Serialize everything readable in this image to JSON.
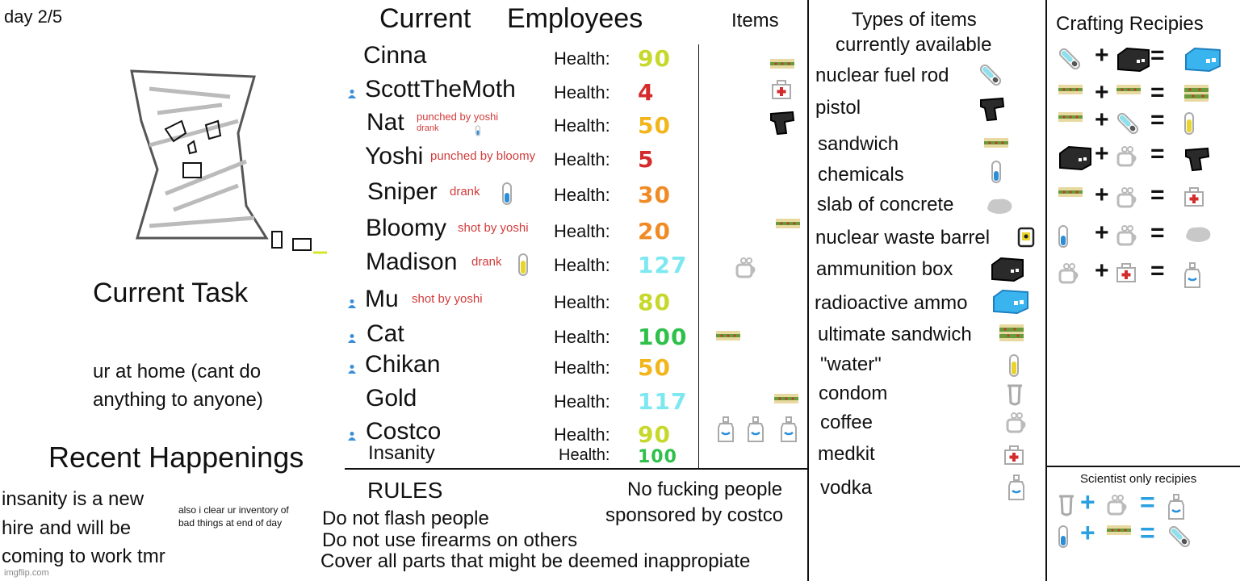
{
  "day": "day 2/5",
  "task": {
    "heading": "Current Task",
    "text_line1": "ur at home (cant do",
    "text_line2": "anything to anyone)"
  },
  "happenings": {
    "heading": "Recent Happenings",
    "line1": "insanity is a new",
    "line2": "hire and will be",
    "line3": "coming to work tmr",
    "side_line1": "also i clear ur inventory of",
    "side_line2": "bad things at end of day"
  },
  "employees": {
    "heading_a": "Current",
    "heading_b": "Employees",
    "items_heading": "Items",
    "health_label": "Health:",
    "rows": [
      {
        "name": "Cinna",
        "health": "90",
        "color": "#c6d82a",
        "note": "",
        "note2": ""
      },
      {
        "name": "ScottTheMoth",
        "health": "4",
        "color": "#d42c2c",
        "note": "",
        "note2": ""
      },
      {
        "name": "Nat",
        "health": "50",
        "color": "#f2b61c",
        "note": "punched by yoshi",
        "note2": "drank"
      },
      {
        "name": "Yoshi",
        "health": "5",
        "color": "#d42c2c",
        "note": "punched by bloomy",
        "note2": ""
      },
      {
        "name": "Sniper",
        "health": "30",
        "color": "#f08a24",
        "note": "drank",
        "note2": ""
      },
      {
        "name": "Bloomy",
        "health": "20",
        "color": "#f08a24",
        "note": "shot by yoshi",
        "note2": ""
      },
      {
        "name": "Madison",
        "health": "127",
        "color": "#7ee8f0",
        "note": "drank",
        "note2": ""
      },
      {
        "name": "Mu",
        "health": "80",
        "color": "#c6d82a",
        "note": "shot by yoshi",
        "note2": ""
      },
      {
        "name": "Cat",
        "health": "100",
        "color": "#2ec04a",
        "note": "",
        "note2": ""
      },
      {
        "name": "Chikan",
        "health": "50",
        "color": "#f2b61c",
        "note": "",
        "note2": ""
      },
      {
        "name": "Gold",
        "health": "117",
        "color": "#7ee8f0",
        "note": "",
        "note2": ""
      },
      {
        "name": "Costco",
        "health": "90",
        "color": "#c6d82a",
        "note": "",
        "note2": ""
      },
      {
        "name": "Insanity",
        "health": "100",
        "color": "#2ec04a",
        "note": "",
        "note2": ""
      }
    ]
  },
  "rules": {
    "heading": "RULES",
    "r1": "Do not flash people",
    "r2": "Do not use firearms on others",
    "r3": "Cover all parts that might be deemed inappropiate",
    "side1": "No fucking people",
    "side2": "sponsored by costco"
  },
  "types": {
    "heading1": "Types of items",
    "heading2": "currently available",
    "list": [
      "nuclear fuel rod",
      "pistol",
      "sandwich",
      "chemicals",
      "slab of concrete",
      "nuclear waste barrel",
      "ammunition box",
      "radioactive ammo",
      "ultimate sandwich",
      "\"water\"",
      "condom",
      "coffee",
      "medkit",
      "vodka"
    ]
  },
  "crafting": {
    "heading": "Crafting Recipies",
    "scientist_heading": "Scientist only recipies",
    "plus": "+",
    "equals": "="
  },
  "watermark": "imgflip.com"
}
